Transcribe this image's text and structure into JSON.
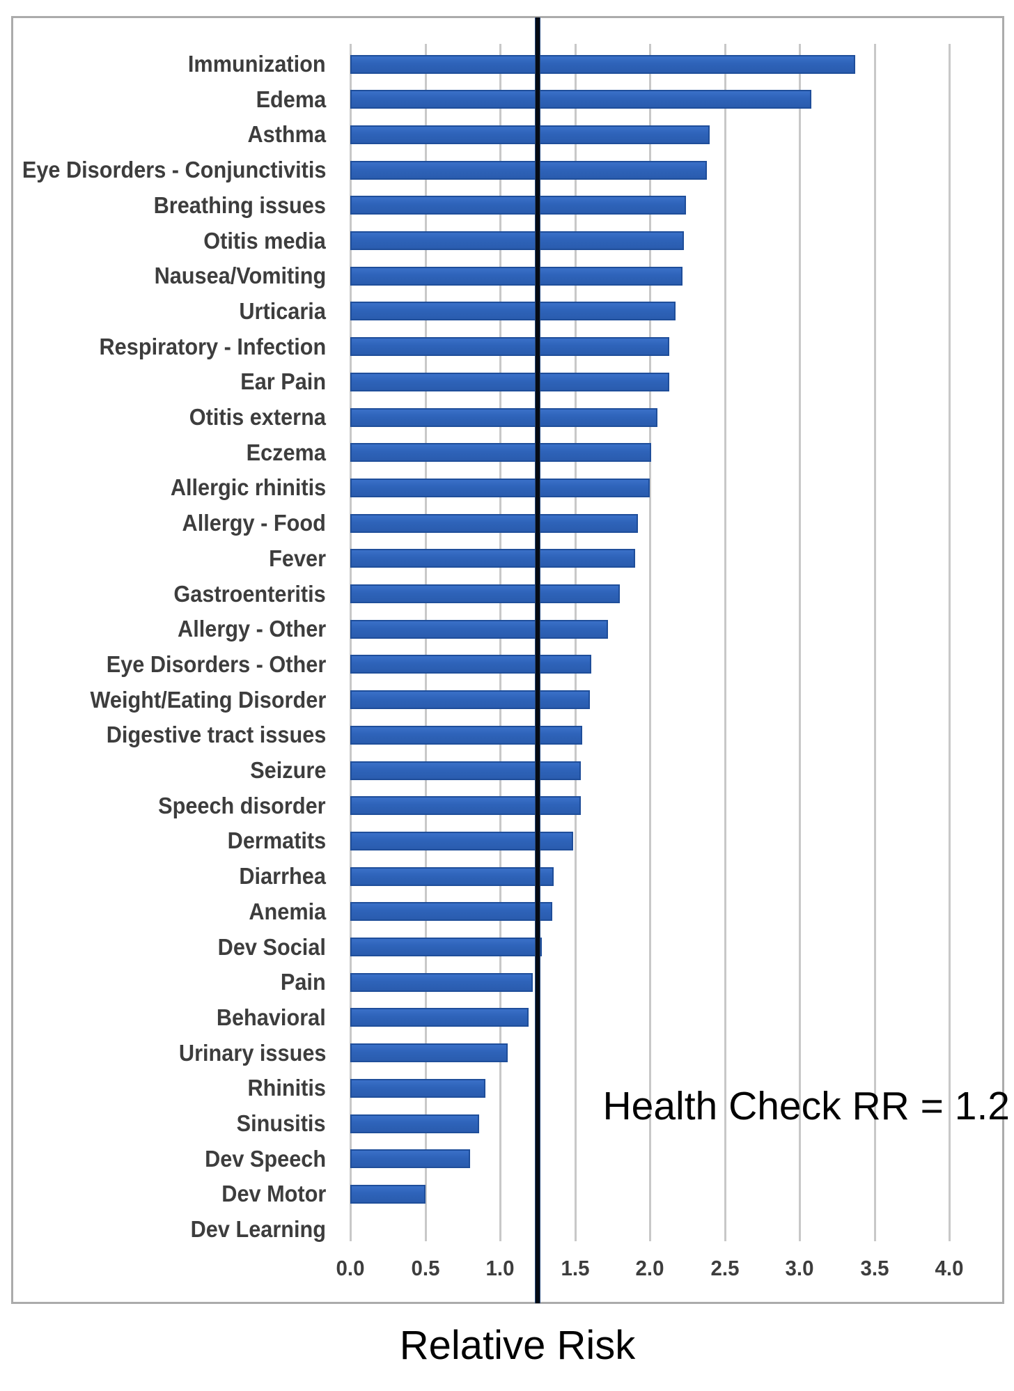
{
  "figure": {
    "annotation": "Health Check RR = 1.2",
    "x_axis_title": "Relative Risk",
    "colors": {
      "bar_fill": "#2E63B9",
      "bar_border": "#1F4E9A",
      "gridline": "#C8C8C8",
      "reference_line": "#060B14",
      "label_text": "#3D3D3D",
      "frame_border": "#ABABAB",
      "annotation_text": "#000000"
    }
  },
  "chart_data": {
    "type": "bar",
    "orientation": "horizontal",
    "title": "",
    "xlabel": "Relative Risk",
    "ylabel": "",
    "xlim": [
      0.0,
      4.0
    ],
    "x_ticks": [
      "0.0",
      "0.5",
      "1.0",
      "1.5",
      "2.0",
      "2.5",
      "3.0",
      "3.5",
      "4.0"
    ],
    "grid": true,
    "legend": false,
    "reference_line": {
      "x": 1.25,
      "labeled_as": 1.2,
      "annotation": "Health Check RR = 1.2"
    },
    "categories": [
      "Immunization",
      "Edema",
      "Asthma",
      "Eye Disorders - Conjunctivitis",
      "Breathing issues",
      "Otitis media",
      "Nausea/Vomiting",
      "Urticaria",
      "Respiratory - Infection",
      "Ear Pain",
      "Otitis externa",
      "Eczema",
      "Allergic rhinitis",
      "Allergy - Food",
      "Fever",
      "Gastroenteritis",
      "Allergy - Other",
      "Eye Disorders - Other",
      "Weight/Eating Disorder",
      "Digestive tract issues",
      "Seizure",
      "Speech disorder",
      "Dermatits",
      "Diarrhea",
      "Anemia",
      "Dev Social",
      "Pain",
      "Behavioral",
      "Urinary issues",
      "Rhinitis",
      "Sinusitis",
      "Dev Speech",
      "Dev Motor",
      "Dev Learning"
    ],
    "values": [
      3.37,
      3.08,
      2.4,
      2.38,
      2.24,
      2.23,
      2.22,
      2.17,
      2.13,
      2.13,
      2.05,
      2.01,
      2.0,
      1.92,
      1.9,
      1.8,
      1.72,
      1.61,
      1.6,
      1.55,
      1.54,
      1.54,
      1.49,
      1.36,
      1.35,
      1.28,
      1.22,
      1.19,
      1.05,
      0.9,
      0.86,
      0.8,
      0.5,
      0.0
    ]
  }
}
